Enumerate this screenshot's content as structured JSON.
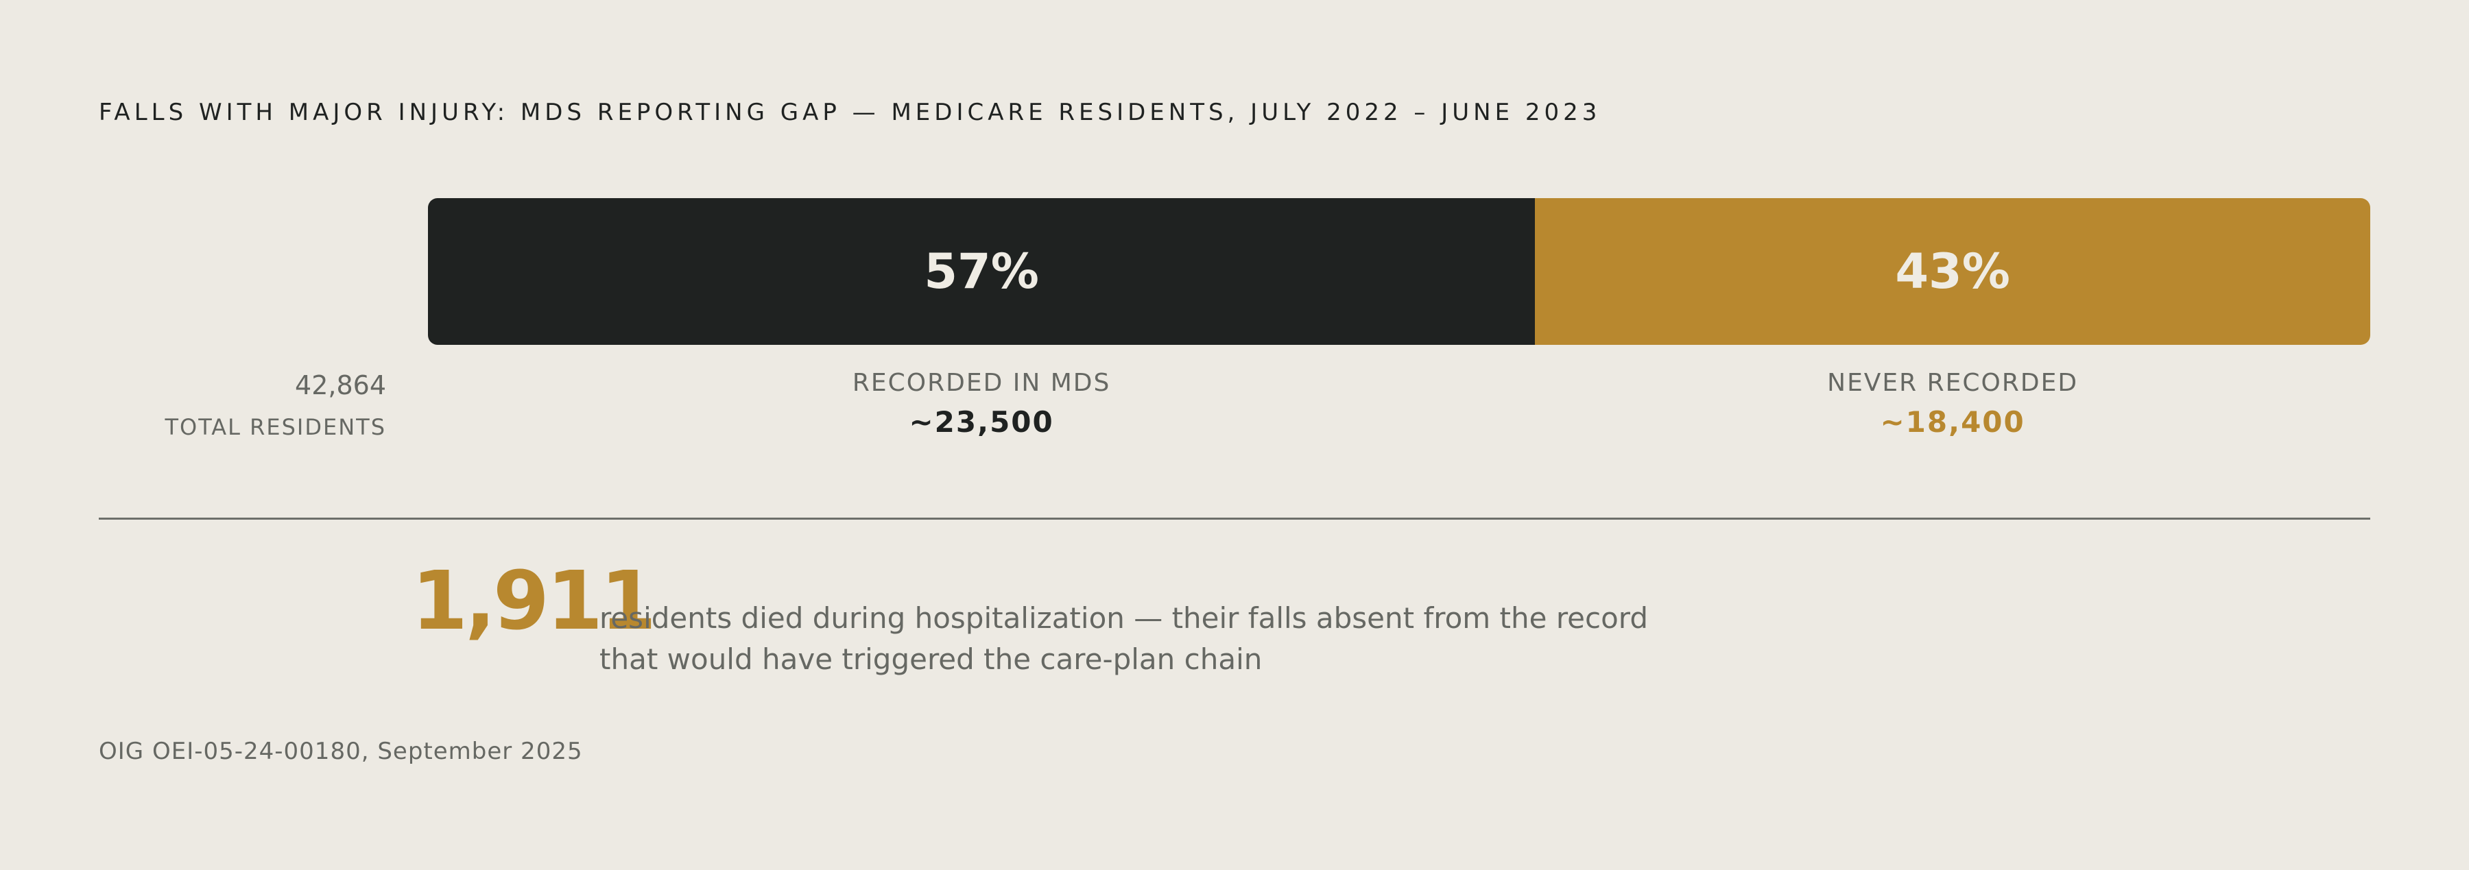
{
  "title": "FALLS WITH MAJOR INJURY: MDS REPORTING GAP — MEDICARE RESIDENTS, JULY 2022 – JUNE 2023",
  "total": {
    "value": "42,864",
    "label": "TOTAL RESIDENTS"
  },
  "chart_data": {
    "type": "bar",
    "orientation": "horizontal",
    "stacked": true,
    "title": "FALLS WITH MAJOR INJURY: MDS REPORTING GAP — MEDICARE RESIDENTS, JULY 2022 – JUNE 2023",
    "categories": [
      "RECORDED IN MDS",
      "NEVER RECORDED"
    ],
    "values": [
      57,
      43
    ],
    "series": [
      {
        "name": "RECORDED IN MDS",
        "value": 57,
        "pct_label": "57%",
        "count_label": "~23,500",
        "color": "#1f2221"
      },
      {
        "name": "NEVER RECORDED",
        "value": 43,
        "pct_label": "43%",
        "count_label": "~18,400",
        "color": "#b8882f"
      }
    ],
    "xlim": [
      0,
      100
    ],
    "grid": false,
    "legend": "none"
  },
  "callout": {
    "number": "1,911",
    "line1": "residents died during hospitalization — their falls absent from the record",
    "line2": "that would have triggered the care-plan chain"
  },
  "source": "OIG OEI-05-24-00180, September 2025",
  "colors": {
    "background": "#edeae3",
    "dark": "#1f2221",
    "accent": "#b8882f",
    "muted_text": "#666863"
  }
}
